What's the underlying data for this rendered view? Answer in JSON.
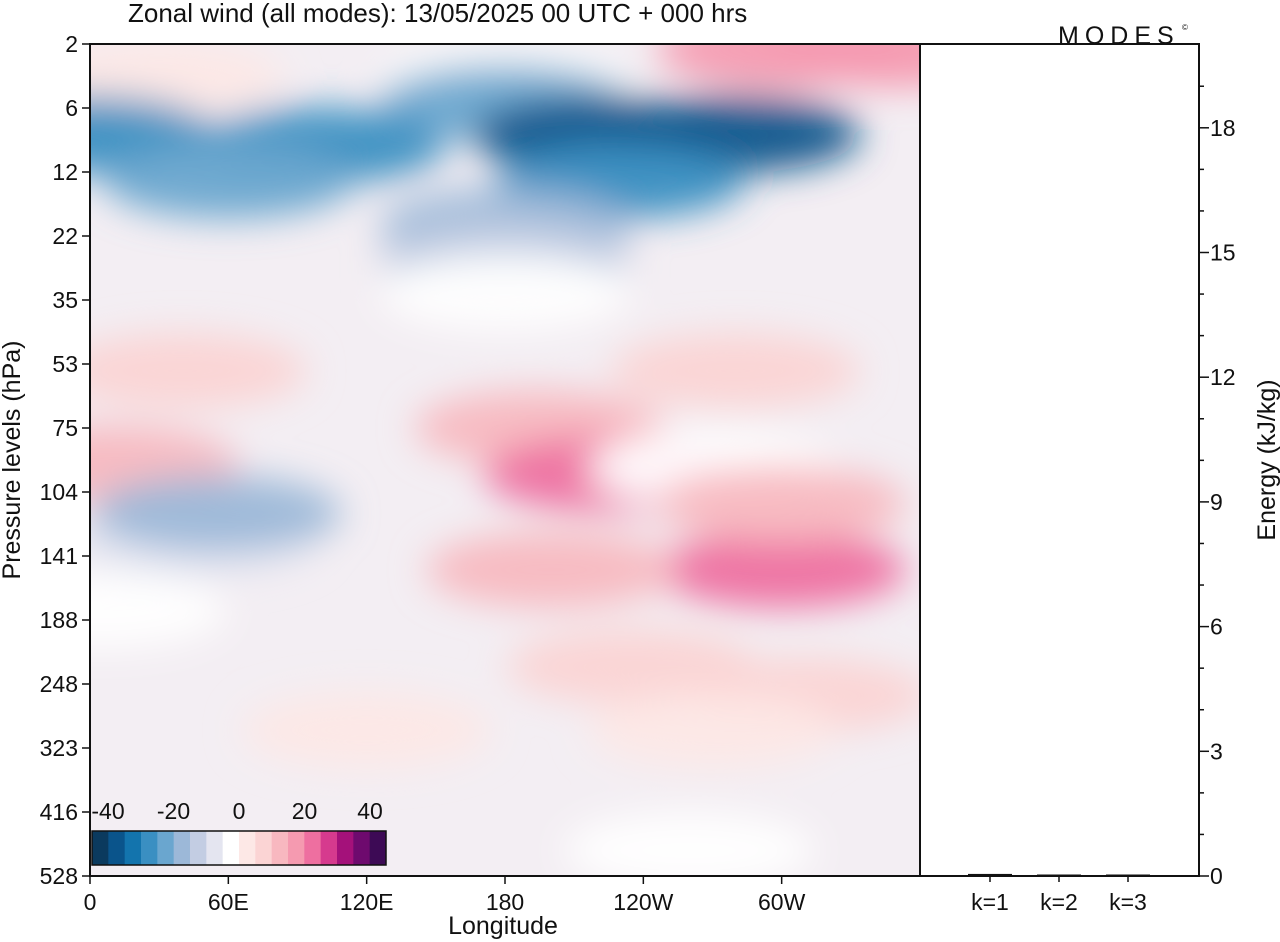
{
  "chart_data": [
    {
      "type": "heatmap",
      "title": "Zonal wind (all modes):  13/05/2025  00 UTC  + 000 hrs",
      "xlabel": "Longitude",
      "ylabel": "Pressure levels (hPa)",
      "x_ticks": [
        "0",
        "60E",
        "120E",
        "180",
        "120W",
        "60W"
      ],
      "y_ticks": [
        "2",
        "6",
        "12",
        "22",
        "35",
        "53",
        "75",
        "104",
        "141",
        "188",
        "248",
        "323",
        "416",
        "528"
      ],
      "colorbar": {
        "tick_labels": [
          "-40",
          "-20",
          "0",
          "20",
          "40"
        ],
        "colors": [
          "#0b3a5e",
          "#0a548b",
          "#1374ad",
          "#3a8fc2",
          "#6aa6cf",
          "#9cb8d8",
          "#c3cde3",
          "#e4e5f0",
          "#ffffff",
          "#fde8e6",
          "#fbd4d4",
          "#f8b8c0",
          "#f59ab0",
          "#ee6fa0",
          "#d63a8e",
          "#a4117a",
          "#6e0a6e",
          "#3d0a55"
        ]
      },
      "cells": [
        {
          "x": 350,
          "y": 2.2,
          "value": 16
        },
        {
          "x": 300,
          "y": 2.2,
          "value": 18
        },
        {
          "x": 30,
          "y": 3.6,
          "value": 4
        },
        {
          "x": 180,
          "y": 3.8,
          "value": -3
        },
        {
          "x": 180,
          "y": 5.5,
          "value": -22
        },
        {
          "x": 220,
          "y": 8,
          "value": -36
        },
        {
          "x": 280,
          "y": 8,
          "value": -36
        },
        {
          "x": 0,
          "y": 8,
          "value": -28
        },
        {
          "x": 100,
          "y": 9,
          "value": -27
        },
        {
          "x": 60,
          "y": 13,
          "value": -25
        },
        {
          "x": 230,
          "y": 13,
          "value": -27
        },
        {
          "x": 180,
          "y": 20,
          "value": -20
        },
        {
          "x": 180,
          "y": 26,
          "value": -12
        },
        {
          "x": 180,
          "y": 33,
          "value": -4
        },
        {
          "x": 40,
          "y": 55,
          "value": 5
        },
        {
          "x": 280,
          "y": 55,
          "value": 6
        },
        {
          "x": 195,
          "y": 75,
          "value": 14
        },
        {
          "x": 225,
          "y": 95,
          "value": 20
        },
        {
          "x": 10,
          "y": 90,
          "value": 12
        },
        {
          "x": 270,
          "y": 92,
          "value": -2
        },
        {
          "x": 300,
          "y": 150,
          "value": 20
        },
        {
          "x": 300,
          "y": 110,
          "value": 12
        },
        {
          "x": 45,
          "y": 130,
          "value": -10
        },
        {
          "x": 55,
          "y": 115,
          "value": -16
        },
        {
          "x": 200,
          "y": 150,
          "value": 10
        },
        {
          "x": 235,
          "y": 230,
          "value": 8
        },
        {
          "x": 310,
          "y": 260,
          "value": 9
        },
        {
          "x": 270,
          "y": 300,
          "value": 3
        },
        {
          "x": 120,
          "y": 300,
          "value": 1
        },
        {
          "x": 5,
          "y": 180,
          "value": -2
        },
        {
          "x": 260,
          "y": 480,
          "value": -4
        }
      ]
    },
    {
      "type": "bar",
      "ylabel": "Energy (kJ/kg)",
      "categories": [
        "k=1",
        "k=2",
        "k=3"
      ],
      "values": [
        0.05,
        0.03,
        0.02
      ],
      "ylim": [
        0,
        20
      ],
      "y_ticks": [
        "0",
        "3",
        "6",
        "9",
        "12",
        "15",
        "18"
      ]
    }
  ],
  "logo_text": "MODES"
}
